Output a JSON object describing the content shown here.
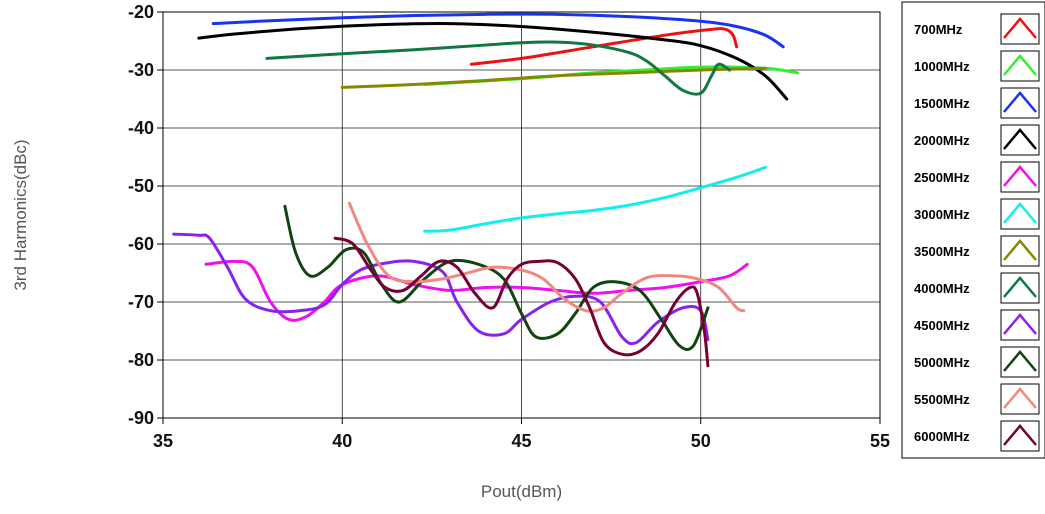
{
  "chart_data": {
    "type": "line",
    "title": "",
    "xlabel": "Pout(dBm)",
    "ylabel": "3rd Harmonics(dBc)",
    "xlim": [
      35,
      55
    ],
    "ylim": [
      -90,
      -20
    ],
    "xticks": [
      35,
      40,
      45,
      50,
      55
    ],
    "yticks": [
      -20,
      -30,
      -40,
      -50,
      -60,
      -70,
      -80,
      -90
    ],
    "grid": true,
    "legend_position": "right",
    "series": [
      {
        "name": "700MHz",
        "color": "#ee1111",
        "x": [
          43.6,
          45,
          47,
          49,
          50.3,
          50.7,
          50.9,
          51.0
        ],
        "y": [
          -29,
          -28,
          -26,
          -24,
          -23,
          -23,
          -24,
          -26
        ]
      },
      {
        "name": "1000MHz",
        "color": "#33ee33",
        "x": [
          42.3,
          45,
          47,
          49,
          50,
          51,
          52,
          52.7
        ],
        "y": [
          -32.5,
          -31.5,
          -30.5,
          -29.8,
          -29.5,
          -29.5,
          -29.8,
          -30.5
        ]
      },
      {
        "name": "1500MHz",
        "color": "#1a33ee",
        "x": [
          36.4,
          38,
          40,
          42,
          44,
          46,
          48,
          50,
          51,
          51.8,
          52.3
        ],
        "y": [
          -22,
          -21.5,
          -21,
          -20.6,
          -20.4,
          -20.4,
          -20.8,
          -21.6,
          -22.5,
          -24,
          -26
        ]
      },
      {
        "name": "2000MHz",
        "color": "#000000",
        "x": [
          36.0,
          37,
          39,
          41,
          43,
          45,
          47,
          49,
          50,
          51,
          51.8,
          52.4
        ],
        "y": [
          -24.5,
          -23.8,
          -22.8,
          -22.2,
          -22,
          -22.5,
          -23.5,
          -24.8,
          -25.8,
          -28,
          -31,
          -35
        ]
      },
      {
        "name": "2500MHz",
        "color": "#ee11ee",
        "x": [
          36.2,
          37,
          37.5,
          38,
          38.5,
          39,
          39.5,
          40,
          41,
          42,
          43,
          44,
          45,
          46,
          47,
          48,
          49,
          50,
          50.8,
          51.3
        ],
        "y": [
          -63.5,
          -63,
          -64,
          -70,
          -73,
          -72.5,
          -70,
          -67,
          -65.5,
          -67,
          -68,
          -67.5,
          -67.5,
          -68,
          -68.5,
          -68,
          -67.5,
          -66.5,
          -65.5,
          -63.5
        ]
      },
      {
        "name": "3000MHz",
        "color": "#11eeee",
        "x": [
          42.3,
          43,
          44,
          45,
          46,
          47,
          48,
          49,
          50,
          51,
          51.8
        ],
        "y": [
          -57.8,
          -57.6,
          -56.5,
          -55.5,
          -54.8,
          -54.2,
          -53.3,
          -52,
          -50.3,
          -48.5,
          -46.8
        ]
      },
      {
        "name": "3500MHz",
        "color": "#888800",
        "x": [
          40.0,
          42,
          44,
          46,
          48,
          50,
          51.8
        ],
        "y": [
          -33,
          -32.5,
          -31.8,
          -31,
          -30.5,
          -30,
          -29.7
        ]
      },
      {
        "name": "4000MHz",
        "color": "#117744",
        "x": [
          37.9,
          40,
          42,
          44,
          45,
          46,
          47,
          48,
          48.5,
          49,
          49.5,
          50,
          50.3,
          50.5,
          50.8
        ],
        "y": [
          -28,
          -27.2,
          -26.5,
          -25.7,
          -25.3,
          -25.2,
          -25.7,
          -27,
          -28.5,
          -31,
          -33.5,
          -34,
          -31,
          -29,
          -30
        ]
      },
      {
        "name": "4500MHz",
        "color": "#8822ee",
        "x": [
          35.3,
          36,
          36.3,
          36.8,
          37.3,
          38,
          38.8,
          39.5,
          40,
          40.5,
          41.2,
          42,
          42.8,
          43.2,
          43.8,
          44.5,
          45,
          45.8,
          46.5,
          47.2,
          47.8,
          48.2,
          48.8,
          49.5,
          50.0,
          50.2
        ],
        "y": [
          -58.3,
          -58.5,
          -59,
          -64,
          -69.5,
          -71.5,
          -71.5,
          -70.5,
          -67,
          -64.5,
          -63.3,
          -63,
          -64.8,
          -70,
          -75,
          -75.5,
          -73,
          -70,
          -69,
          -70,
          -76,
          -77,
          -73.5,
          -71,
          -71.5,
          -76.5
        ]
      },
      {
        "name": "5000MHz",
        "color": "#114411",
        "x": [
          38.4,
          38.7,
          39.1,
          39.6,
          40.1,
          40.6,
          41.1,
          41.6,
          42.3,
          43.0,
          43.8,
          44.5,
          45.0,
          45.4,
          46.0,
          46.5,
          47.0,
          47.6,
          48.3,
          48.9,
          49.4,
          49.8,
          50.2
        ],
        "y": [
          -53.5,
          -61.5,
          -65.5,
          -64,
          -61,
          -61.5,
          -67,
          -70,
          -66,
          -63,
          -63.5,
          -66,
          -72,
          -76,
          -75.5,
          -72,
          -67.5,
          -66.5,
          -68,
          -73,
          -77.5,
          -77.5,
          -71
        ]
      },
      {
        "name": "5500MHz",
        "color": "#f08880",
        "x": [
          40.2,
          40.7,
          41.3,
          42.0,
          42.8,
          43.5,
          44.2,
          45.0,
          45.6,
          46.2,
          46.8,
          47.3,
          47.8,
          48.5,
          49.3,
          49.9,
          50.5,
          51.0,
          51.2
        ],
        "y": [
          -53,
          -60,
          -65.5,
          -66.5,
          -66,
          -65,
          -64,
          -64.5,
          -66,
          -69.5,
          -71.5,
          -71,
          -68.5,
          -65.8,
          -65.5,
          -66,
          -67.5,
          -71,
          -71.5
        ]
      },
      {
        "name": "6000MHz",
        "color": "#770033",
        "x": [
          39.8,
          40.3,
          40.8,
          41.2,
          41.7,
          42.2,
          42.7,
          43.2,
          43.7,
          44.2,
          44.6,
          45.0,
          45.5,
          46.0,
          46.5,
          46.9,
          47.3,
          47.8,
          48.3,
          48.8,
          49.3,
          49.7,
          49.9,
          50.1,
          50.2
        ],
        "y": [
          -59,
          -60,
          -64.5,
          -67.5,
          -68,
          -65.5,
          -63,
          -64,
          -68.5,
          -71,
          -66,
          -63.5,
          -63,
          -63.2,
          -66,
          -71,
          -77,
          -79,
          -78.5,
          -75.5,
          -70,
          -67.5,
          -68.5,
          -75,
          -81
        ]
      }
    ]
  }
}
